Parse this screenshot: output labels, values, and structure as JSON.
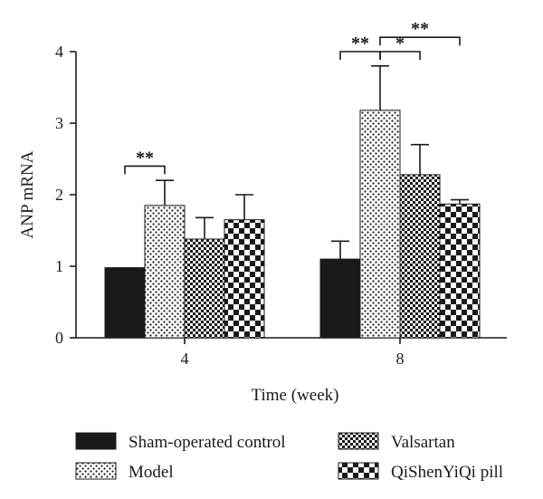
{
  "chart_data": {
    "type": "bar",
    "xlabel": "Time (week)",
    "ylabel": "ANP mRNA",
    "ylim": [
      0,
      4
    ],
    "yticks": [
      0,
      1,
      2,
      3,
      4
    ],
    "categories": [
      "4",
      "8"
    ],
    "grid": false,
    "legend_position": "bottom",
    "series": [
      {
        "name": "Sham-operated control",
        "values": [
          0.98,
          1.1
        ],
        "errors": [
          0.0,
          0.25
        ],
        "pattern": "solid",
        "color": "#1a1a1a"
      },
      {
        "name": "Model",
        "values": [
          1.85,
          3.18
        ],
        "errors": [
          0.35,
          0.62
        ],
        "pattern": "dots",
        "color": "#1a1a1a"
      },
      {
        "name": "Valsartan",
        "values": [
          1.38,
          2.28
        ],
        "errors": [
          0.3,
          0.42
        ],
        "pattern": "fine-checker",
        "color": "#1a1a1a"
      },
      {
        "name": "QiShenYiQi pill",
        "values": [
          1.65,
          1.87
        ],
        "errors": [
          0.35,
          0.06
        ],
        "pattern": "coarse-checker",
        "color": "#1a1a1a"
      }
    ],
    "annotations": [
      {
        "category": "4",
        "from_series": 0,
        "to_series": 1,
        "text": "**",
        "y": 2.4
      },
      {
        "category": "8",
        "from_series": 0,
        "to_series": 1,
        "text": "**",
        "y": 4.0
      },
      {
        "category": "8",
        "from_series": 1,
        "to_series": 2,
        "text": "*",
        "y": 4.0
      },
      {
        "category": "8",
        "from_series": 1,
        "to_series": 3,
        "text": "**",
        "y": 4.2
      }
    ]
  }
}
